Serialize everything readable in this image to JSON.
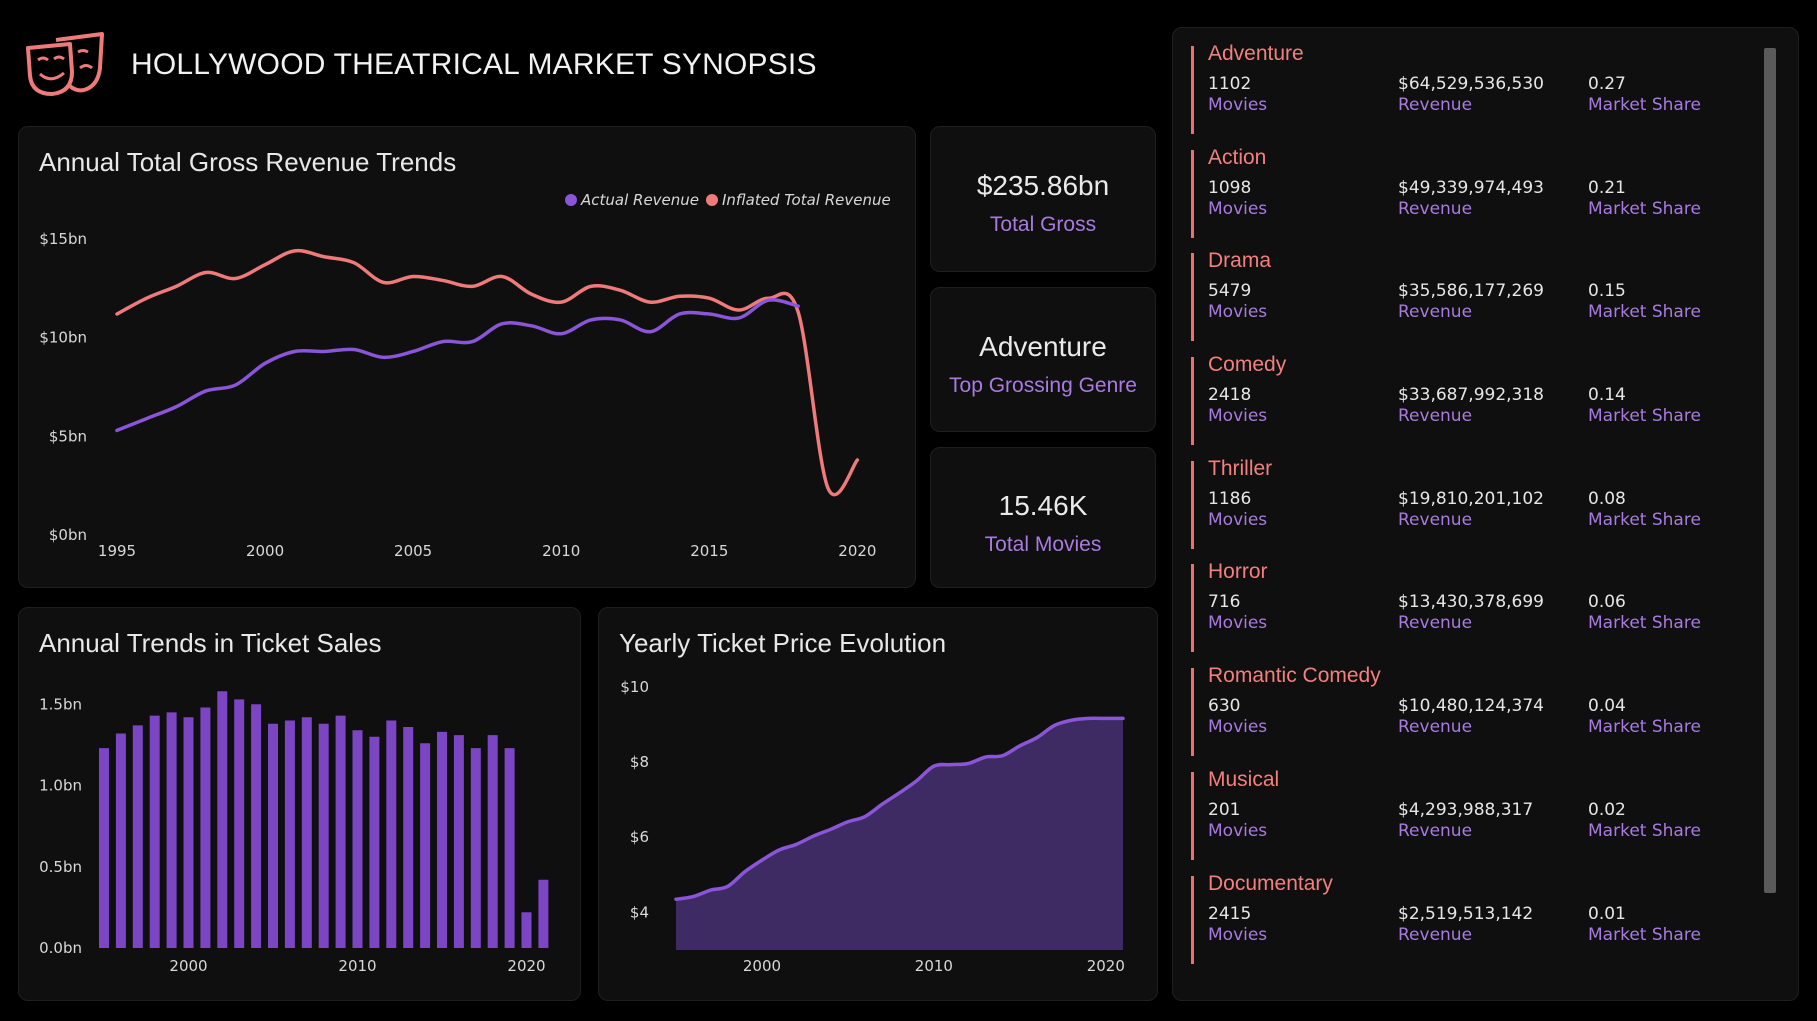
{
  "header": {
    "title": "HOLLYWOOD THEATRICAL MARKET SYNOPSIS",
    "logo_icon": "theater-masks-icon"
  },
  "colors": {
    "purple": "#8a55d6",
    "coral": "#ef7a7a",
    "label_purple": "#a77be0",
    "area_fill": "#3f2b63"
  },
  "revenue_panel": {
    "title": "Annual Total Gross Revenue Trends"
  },
  "kpis": {
    "total_gross": {
      "value": "$235.86bn",
      "label": "Total Gross"
    },
    "top_genre": {
      "value": "Adventure",
      "label": "Top Grossing Genre"
    },
    "total_movies": {
      "value": "15.46K",
      "label": "Total Movies"
    }
  },
  "tickets_panel": {
    "title": "Annual Trends in Ticket Sales"
  },
  "price_panel": {
    "title": "Yearly Ticket Price Evolution"
  },
  "genres": [
    {
      "name": "Adventure",
      "movies": "1102",
      "revenue": "$64,529,536,530",
      "share": "0.27"
    },
    {
      "name": "Action",
      "movies": "1098",
      "revenue": "$49,339,974,493",
      "share": "0.21"
    },
    {
      "name": "Drama",
      "movies": "5479",
      "revenue": "$35,586,177,269",
      "share": "0.15"
    },
    {
      "name": "Comedy",
      "movies": "2418",
      "revenue": "$33,687,992,318",
      "share": "0.14"
    },
    {
      "name": "Thriller",
      "movies": "1186",
      "revenue": "$19,810,201,102",
      "share": "0.08"
    },
    {
      "name": "Horror",
      "movies": "716",
      "revenue": "$13,430,378,699",
      "share": "0.06"
    },
    {
      "name": "Romantic Comedy",
      "movies": "630",
      "revenue": "$10,480,124,374",
      "share": "0.04"
    },
    {
      "name": "Musical",
      "movies": "201",
      "revenue": "$4,293,988,317",
      "share": "0.02"
    },
    {
      "name": "Documentary",
      "movies": "2415",
      "revenue": "$2,519,513,142",
      "share": "0.01"
    }
  ],
  "genre_labels": {
    "movies": "Movies",
    "revenue": "Revenue",
    "share": "Market Share"
  },
  "chart_data": [
    {
      "id": "revenue",
      "type": "line",
      "title": "Annual Total Gross Revenue Trends",
      "x": [
        1995,
        1996,
        1997,
        1998,
        1999,
        2000,
        2001,
        2002,
        2003,
        2004,
        2005,
        2006,
        2007,
        2008,
        2009,
        2010,
        2011,
        2012,
        2013,
        2014,
        2015,
        2016,
        2017,
        2018,
        2019,
        2020,
        2021
      ],
      "series": [
        {
          "name": "Actual Revenue",
          "color": "#8a55d6",
          "values": [
            5.3,
            5.9,
            6.5,
            7.3,
            7.6,
            8.7,
            9.3,
            9.3,
            9.4,
            9.0,
            9.3,
            9.8,
            9.8,
            10.7,
            10.6,
            10.2,
            10.9,
            10.9,
            10.3,
            11.2,
            11.2,
            11.0,
            11.9,
            11.6,
            null,
            null,
            null
          ]
        },
        {
          "name": "Inflated Total Revenue",
          "color": "#ef7a7a",
          "values": [
            11.2,
            12.0,
            12.6,
            13.3,
            13.0,
            13.7,
            14.4,
            14.1,
            13.8,
            12.8,
            13.1,
            12.9,
            12.6,
            13.1,
            12.2,
            11.8,
            12.6,
            12.4,
            11.8,
            12.1,
            12.0,
            11.4,
            12.0,
            11.3,
            2.4,
            3.8,
            null
          ]
        }
      ],
      "legend": [
        "Actual Revenue",
        "Inflated Total Revenue"
      ],
      "y_ticks": [
        "$0bn",
        "$5bn",
        "$10bn",
        "$15bn"
      ],
      "y_tick_values": [
        0,
        5,
        10,
        15
      ],
      "x_ticks": [
        "1995",
        "2000",
        "2005",
        "2010",
        "2015",
        "2020"
      ],
      "ylim": [
        0,
        15
      ]
    },
    {
      "id": "tickets",
      "type": "bar",
      "title": "Annual Trends in Ticket Sales",
      "categories": [
        1995,
        1996,
        1997,
        1998,
        1999,
        2000,
        2001,
        2002,
        2003,
        2004,
        2005,
        2006,
        2007,
        2008,
        2009,
        2010,
        2011,
        2012,
        2013,
        2014,
        2015,
        2016,
        2017,
        2018,
        2019,
        2020,
        2021
      ],
      "values": [
        1.23,
        1.32,
        1.37,
        1.43,
        1.45,
        1.42,
        1.48,
        1.58,
        1.53,
        1.5,
        1.38,
        1.4,
        1.42,
        1.38,
        1.43,
        1.34,
        1.3,
        1.4,
        1.36,
        1.26,
        1.33,
        1.31,
        1.23,
        1.31,
        1.23,
        0.22,
        0.42
      ],
      "y_ticks": [
        "0.0bn",
        "0.5bn",
        "1.0bn",
        "1.5bn"
      ],
      "y_tick_values": [
        0,
        0.5,
        1.0,
        1.5
      ],
      "x_ticks": [
        "2000",
        "2010",
        "2020"
      ],
      "ylim": [
        0,
        1.6
      ]
    },
    {
      "id": "price",
      "type": "area",
      "title": "Yearly Ticket Price Evolution",
      "x": [
        1995,
        1996,
        1997,
        1998,
        1999,
        2000,
        2001,
        2002,
        2003,
        2004,
        2005,
        2006,
        2007,
        2008,
        2009,
        2010,
        2011,
        2012,
        2013,
        2014,
        2015,
        2016,
        2017,
        2018,
        2019,
        2020,
        2021
      ],
      "values": [
        4.35,
        4.42,
        4.59,
        4.69,
        5.08,
        5.39,
        5.66,
        5.81,
        6.03,
        6.21,
        6.41,
        6.55,
        6.88,
        7.18,
        7.5,
        7.89,
        7.93,
        7.96,
        8.13,
        8.17,
        8.43,
        8.65,
        8.97,
        9.11,
        9.16,
        9.16,
        9.16
      ],
      "y_ticks": [
        "$4",
        "$6",
        "$8",
        "$10"
      ],
      "y_tick_values": [
        4,
        6,
        8,
        10
      ],
      "x_ticks": [
        "2000",
        "2010",
        "2020"
      ],
      "ylim": [
        3,
        10.5
      ]
    }
  ]
}
